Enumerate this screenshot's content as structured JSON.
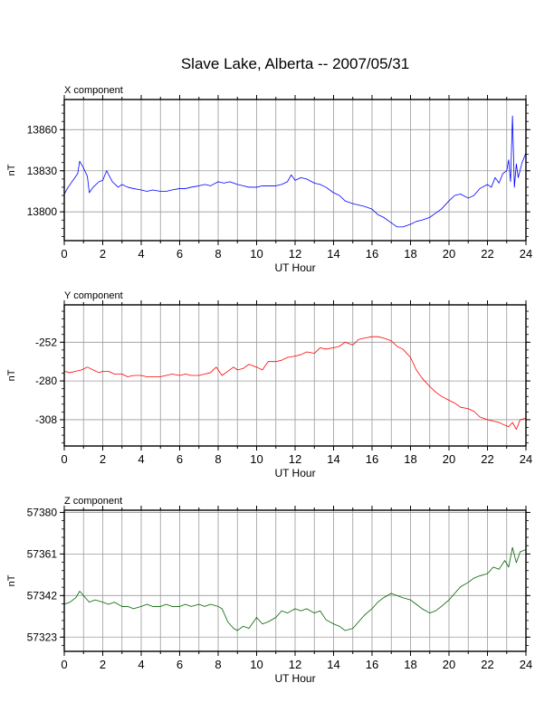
{
  "page_title": "Slave Lake, Alberta -- 2007/05/31",
  "chart_data": [
    {
      "type": "line",
      "title": "X component",
      "xlabel": "UT Hour",
      "ylabel": "nT",
      "xlim": [
        0,
        24
      ],
      "ylim": [
        13779,
        13882
      ],
      "xticks": [
        0,
        2,
        4,
        6,
        8,
        10,
        12,
        14,
        16,
        18,
        20,
        22,
        24
      ],
      "yticks": [
        13800,
        13830,
        13860
      ],
      "grid": true,
      "color": "#0000ff",
      "series": [
        {
          "x": [
            0,
            0.2,
            0.5,
            0.7,
            0.8,
            1.0,
            1.2,
            1.3,
            1.5,
            1.8,
            2.0,
            2.2,
            2.5,
            2.8,
            3.0,
            3.3,
            3.6,
            4.0,
            4.3,
            4.6,
            5.0,
            5.3,
            5.6,
            6.0,
            6.3,
            6.6,
            7.0,
            7.3,
            7.6,
            8.0,
            8.3,
            8.6,
            9.0,
            9.3,
            9.6,
            10.0,
            10.3,
            10.6,
            11.0,
            11.3,
            11.6,
            11.8,
            12.0,
            12.3,
            12.6,
            13.0,
            13.3,
            13.6,
            14.0,
            14.3,
            14.6,
            15.0,
            15.3,
            15.6,
            16.0,
            16.3,
            16.6,
            17.0,
            17.3,
            17.6,
            18.0,
            18.3,
            18.6,
            19.0,
            19.3,
            19.6,
            20.0,
            20.3,
            20.6,
            21.0,
            21.3,
            21.6,
            22.0,
            22.2,
            22.4,
            22.6,
            22.8,
            23.0,
            23.1,
            23.2,
            23.3,
            23.4,
            23.5,
            23.6,
            23.8,
            24.0
          ],
          "y": [
            13813,
            13818,
            13824,
            13828,
            13837,
            13832,
            13826,
            13814,
            13818,
            13822,
            13823,
            13830,
            13822,
            13818,
            13820,
            13818,
            13817,
            13816,
            13815,
            13816,
            13815,
            13815,
            13816,
            13817,
            13817,
            13818,
            13819,
            13820,
            13819,
            13822,
            13821,
            13822,
            13820,
            13819,
            13818,
            13818,
            13819,
            13819,
            13819,
            13820,
            13822,
            13827,
            13823,
            13825,
            13824,
            13821,
            13820,
            13818,
            13814,
            13812,
            13808,
            13806,
            13805,
            13804,
            13802,
            13798,
            13796,
            13792,
            13789,
            13789,
            13791,
            13793,
            13794,
            13796,
            13799,
            13802,
            13808,
            13812,
            13813,
            13810,
            13812,
            13817,
            13820,
            13818,
            13825,
            13821,
            13828,
            13830,
            13838,
            13822,
            13870,
            13818,
            13835,
            13825,
            13836,
            13843
          ]
        }
      ]
    },
    {
      "type": "line",
      "title": "Y component",
      "xlabel": "UT Hour",
      "ylabel": "nT",
      "xlim": [
        0,
        24
      ],
      "ylim": [
        -327,
        -225
      ],
      "xticks": [
        0,
        2,
        4,
        6,
        8,
        10,
        12,
        14,
        16,
        18,
        20,
        22,
        24
      ],
      "yticks": [
        -252,
        -280,
        -308
      ],
      "grid": true,
      "color": "#ff0000",
      "series": [
        {
          "x": [
            0,
            0.3,
            0.6,
            0.9,
            1.2,
            1.5,
            1.8,
            2.0,
            2.3,
            2.6,
            3.0,
            3.3,
            3.6,
            4.0,
            4.3,
            4.6,
            5.0,
            5.3,
            5.6,
            6.0,
            6.3,
            6.6,
            7.0,
            7.3,
            7.6,
            7.9,
            8.2,
            8.5,
            8.8,
            9.0,
            9.3,
            9.6,
            10.0,
            10.3,
            10.6,
            11.0,
            11.3,
            11.6,
            12.0,
            12.3,
            12.6,
            13.0,
            13.3,
            13.6,
            14.0,
            14.3,
            14.6,
            15.0,
            15.3,
            15.6,
            16.0,
            16.3,
            16.6,
            17.0,
            17.3,
            17.6,
            18.0,
            18.3,
            18.6,
            19.0,
            19.3,
            19.6,
            20.0,
            20.3,
            20.6,
            21.0,
            21.3,
            21.6,
            22.0,
            22.3,
            22.6,
            22.9,
            23.1,
            23.3,
            23.5,
            23.7,
            24.0
          ],
          "y": [
            -273,
            -274,
            -273,
            -272,
            -270,
            -272,
            -274,
            -273,
            -273,
            -275,
            -275,
            -277,
            -276,
            -276,
            -277,
            -277,
            -277,
            -276,
            -275,
            -276,
            -275,
            -276,
            -276,
            -275,
            -274,
            -270,
            -276,
            -273,
            -270,
            -272,
            -271,
            -268,
            -270,
            -272,
            -266,
            -266,
            -265,
            -263,
            -262,
            -261,
            -259,
            -260,
            -256,
            -257,
            -256,
            -255,
            -252,
            -254,
            -250,
            -249,
            -248,
            -248,
            -249,
            -251,
            -255,
            -257,
            -263,
            -272,
            -278,
            -284,
            -288,
            -291,
            -294,
            -296,
            -299,
            -300,
            -302,
            -306,
            -308,
            -309,
            -310,
            -312,
            -313,
            -310,
            -315,
            -308,
            -307
          ]
        }
      ]
    },
    {
      "type": "line",
      "title": "Z component",
      "xlabel": "UT Hour",
      "ylabel": "nT",
      "xlim": [
        0,
        24
      ],
      "ylim": [
        57316.5,
        57381
      ],
      "xticks": [
        0,
        2,
        4,
        6,
        8,
        10,
        12,
        14,
        16,
        18,
        20,
        22,
        24
      ],
      "yticks": [
        57323,
        57342,
        57361,
        57380
      ],
      "grid": true,
      "color": "#006400",
      "series": [
        {
          "x": [
            0,
            0.3,
            0.6,
            0.8,
            1.0,
            1.3,
            1.6,
            2.0,
            2.3,
            2.6,
            3.0,
            3.3,
            3.6,
            4.0,
            4.3,
            4.6,
            5.0,
            5.3,
            5.6,
            6.0,
            6.3,
            6.6,
            7.0,
            7.3,
            7.6,
            8.0,
            8.2,
            8.5,
            8.8,
            9.0,
            9.3,
            9.6,
            10.0,
            10.3,
            10.6,
            11.0,
            11.3,
            11.6,
            12.0,
            12.3,
            12.6,
            13.0,
            13.3,
            13.6,
            14.0,
            14.3,
            14.6,
            15.0,
            15.3,
            15.6,
            16.0,
            16.3,
            16.6,
            17.0,
            17.3,
            17.6,
            18.0,
            18.3,
            18.6,
            19.0,
            19.3,
            19.6,
            20.0,
            20.3,
            20.6,
            21.0,
            21.3,
            21.6,
            22.0,
            22.3,
            22.6,
            22.9,
            23.1,
            23.3,
            23.5,
            23.7,
            24.0
          ],
          "y": [
            57338,
            57339,
            57341,
            57344,
            57342,
            57339,
            57340,
            57339,
            57338,
            57339,
            57337,
            57337,
            57336,
            57337,
            57338,
            57337,
            57337,
            57338,
            57337,
            57337,
            57338,
            57337,
            57338,
            57337,
            57338,
            57337,
            57336,
            57330,
            57327,
            57326,
            57328,
            57327,
            57332,
            57329,
            57330,
            57332,
            57335,
            57334,
            57336,
            57335,
            57336,
            57334,
            57335,
            57331,
            57329,
            57328,
            57326,
            57327,
            57330,
            57333,
            57336,
            57339,
            57341,
            57343,
            57342,
            57341,
            57340,
            57338,
            57336,
            57334,
            57335,
            57337,
            57340,
            57343,
            57346,
            57348,
            57350,
            57351,
            57352,
            57355,
            57354,
            57358,
            57355,
            57364,
            57357,
            57362,
            57363
          ]
        }
      ]
    }
  ]
}
